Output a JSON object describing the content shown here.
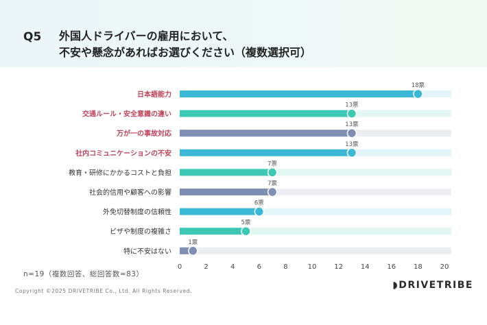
{
  "header": {
    "question_label": "Q5",
    "title_line1": "外国人ドライバーの雇用において、",
    "title_line2": "不安や懸念があればお選びください（複数選択可）"
  },
  "chart_data": {
    "type": "bar",
    "orientation": "horizontal",
    "categories": [
      "日本語能力",
      "交通ルール・安全意識の違い",
      "万が一の事故対応",
      "社内コミュニケーションの不安",
      "教育・研修にかかるコストと負担",
      "社会的信用や顧客への影響",
      "外免切替制度の信頼性",
      "ビザや制度の複雑さ",
      "特に不安はない"
    ],
    "values": [
      18,
      13,
      13,
      13,
      7,
      7,
      6,
      5,
      1
    ],
    "value_labels": [
      "18票",
      "13票",
      "13票",
      "13票",
      "7票",
      "7票",
      "6票",
      "5票",
      "1票"
    ],
    "highlighted": [
      true,
      true,
      true,
      true,
      false,
      false,
      false,
      false,
      false
    ],
    "bar_colors": [
      "#3bb8d6",
      "#3cc8b4",
      "#7f8fb4",
      "#3bb8d6",
      "#3cc8b4",
      "#7f8fb4",
      "#3bb8d6",
      "#3cc8b4",
      "#7f8fb4"
    ],
    "track_colors": [
      "#e2f5f8",
      "#e2f6f2",
      "#eceef4",
      "#e2f5f8",
      "#e2f6f2",
      "#eceef4",
      "#e2f5f8",
      "#e2f6f2",
      "#eceef4"
    ],
    "highlight_label_color": "#c0455a",
    "normal_label_color": "#333333",
    "xlim": [
      0,
      20
    ],
    "xticks": [
      0,
      2,
      4,
      6,
      8,
      10,
      12,
      14,
      16,
      18,
      20
    ],
    "grid": false
  },
  "footer": {
    "note": "n=19（複数回答、総回答数=83）",
    "copyright": "Copyright ©2025 DRIVETRIBE Co., Ltd. All Rights Reserved.",
    "brand": "DRIVETRIBE"
  }
}
